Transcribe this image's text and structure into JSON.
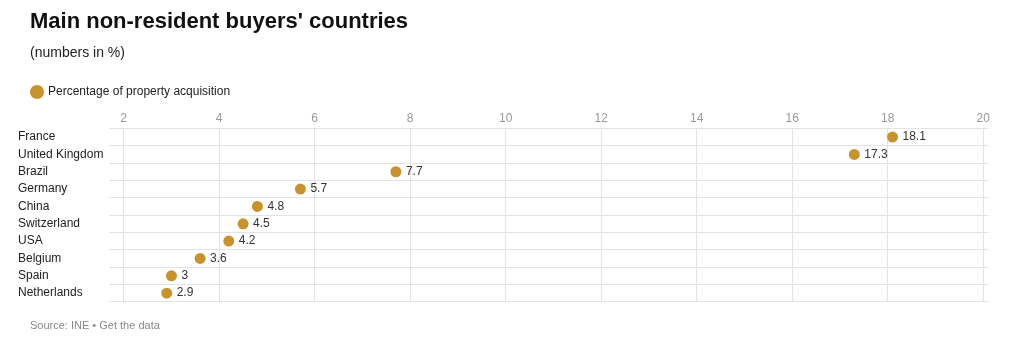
{
  "chart_data": {
    "type": "scatter",
    "title": "Main non-resident buyers' countries",
    "subtitle": "(numbers in %)",
    "orientation": "horizontal",
    "categories": [
      "France",
      "United Kingdom",
      "Brazil",
      "Germany",
      "China",
      "Switzerland",
      "USA",
      "Belgium",
      "Spain",
      "Netherlands"
    ],
    "series": [
      {
        "name": "Percentage of property acquisition",
        "color": "#c8922f",
        "values": [
          18.1,
          17.3,
          7.7,
          5.7,
          4.8,
          4.5,
          4.2,
          3.6,
          3,
          2.9
        ]
      }
    ],
    "xlim": [
      1.7,
      20.1
    ],
    "xticks": [
      2,
      4,
      6,
      8,
      10,
      12,
      14,
      16,
      18,
      20
    ],
    "grid": true,
    "legend": "top left",
    "marker": "circle",
    "data_labels": true,
    "annotations": [
      "Source: INE • Get the data"
    ]
  }
}
